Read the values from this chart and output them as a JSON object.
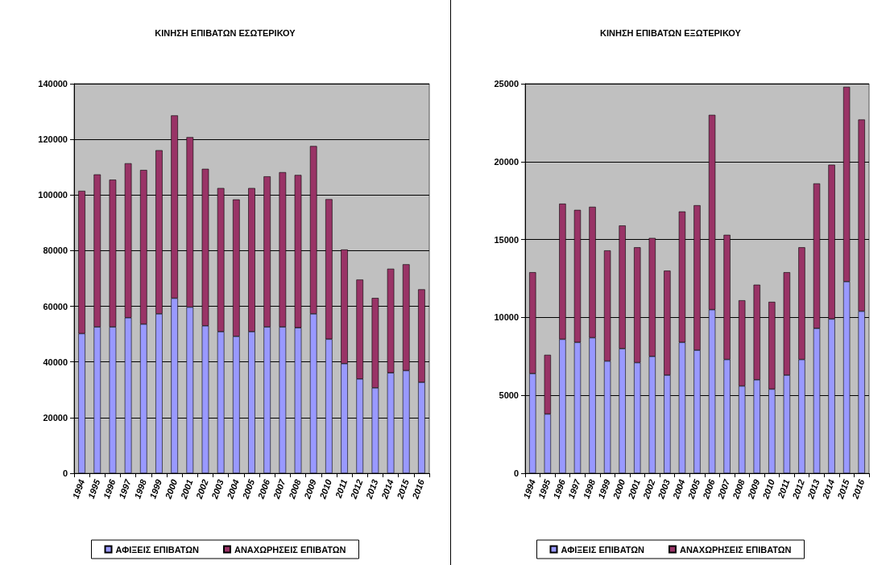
{
  "chart_data": [
    {
      "type": "bar",
      "title": "ΚΙΝΗΣΗ ΕΠΙΒΑΤΩΝ ΕΣΩΤΕΡΙΚΟΥ",
      "categories": [
        "1994",
        "1995",
        "1996",
        "1997",
        "1998",
        "1999",
        "2000",
        "2001",
        "2002",
        "2003",
        "2004",
        "2005",
        "2006",
        "2007",
        "2008",
        "2009",
        "2010",
        "2011",
        "2012",
        "2013",
        "2014",
        "2015",
        "2016"
      ],
      "stacked": true,
      "ylim": [
        0,
        140000
      ],
      "yticks": [
        0,
        20000,
        40000,
        60000,
        80000,
        100000,
        120000,
        140000
      ],
      "grid": "y",
      "legend": "bottom",
      "series": [
        {
          "name": "ΑΦΙΞΕΙΣ ΕΠΙΒΑΤΩΝ",
          "color": "#9999ff",
          "values": [
            50200,
            52600,
            52600,
            55900,
            53600,
            57300,
            62900,
            59700,
            53000,
            50900,
            49200,
            50900,
            52600,
            52600,
            52300,
            57300,
            48200,
            39400,
            33900,
            30700,
            36100,
            36900,
            32700
          ]
        },
        {
          "name": "ΑΝΑΧΩΡΗΣΕΙΣ ΕΠΙΒΑΤΩΝ",
          "color": "#993366",
          "values": [
            51300,
            54800,
            52900,
            55500,
            55400,
            58800,
            65700,
            61100,
            56400,
            51600,
            49200,
            51600,
            54100,
            55600,
            54900,
            60300,
            50300,
            41000,
            35700,
            32300,
            37400,
            38200,
            33400
          ]
        }
      ]
    },
    {
      "type": "bar",
      "title": "ΚΙΝΗΣΗ ΕΠΙΒΑΤΩΝ ΕΞΩΤΕΡΙΚΟΥ",
      "categories": [
        "1994",
        "1995",
        "1996",
        "1997",
        "1998",
        "1999",
        "2000",
        "2001",
        "2002",
        "2003",
        "2004",
        "2005",
        "2006",
        "2007",
        "2008",
        "2009",
        "2010",
        "2011",
        "2012",
        "2013",
        "2014",
        "2015",
        "2016"
      ],
      "stacked": true,
      "ylim": [
        0,
        25000
      ],
      "yticks": [
        0,
        5000,
        10000,
        15000,
        20000,
        25000
      ],
      "grid": "y",
      "legend": "bottom",
      "series": [
        {
          "name": "ΑΦΙΞΕΙΣ ΕΠΙΒΑΤΩΝ",
          "color": "#9999ff",
          "values": [
            6400,
            3800,
            8600,
            8400,
            8700,
            7200,
            8000,
            7100,
            7500,
            6300,
            8400,
            7900,
            10500,
            7300,
            5600,
            6000,
            5400,
            6300,
            7300,
            9300,
            9900,
            12300,
            10400
          ]
        },
        {
          "name": "ΑΝΑΧΩΡΗΣΕΙΣ ΕΠΙΒΑΤΩΝ",
          "color": "#993366",
          "values": [
            6500,
            3800,
            8700,
            8500,
            8400,
            7100,
            7900,
            7400,
            7600,
            6700,
            8400,
            9300,
            12500,
            8000,
            5500,
            6100,
            5600,
            6600,
            7200,
            9300,
            9900,
            12500,
            12300
          ]
        }
      ]
    }
  ]
}
